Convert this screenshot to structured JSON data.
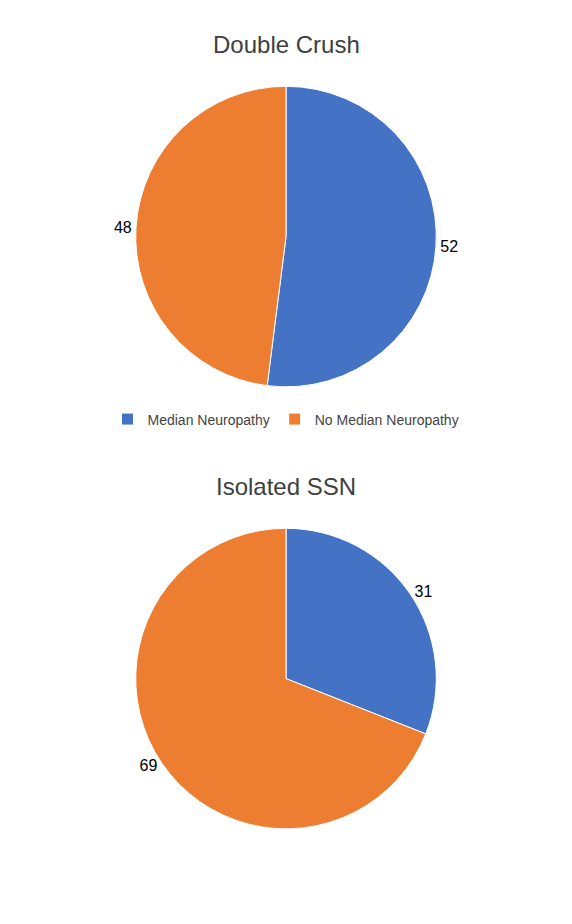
{
  "chart_data": [
    {
      "type": "pie",
      "title": "Double Crush",
      "categories": [
        "Median Neuropathy",
        "No Median Neuropathy"
      ],
      "values": [
        52,
        48
      ],
      "colors": [
        "#4472c4",
        "#ed7d31"
      ],
      "data_labels": true,
      "legend": "bottom"
    },
    {
      "type": "pie",
      "title": "Isolated SSN",
      "categories": [
        "Median Neuropathy",
        "No Median Neuropathy"
      ],
      "values": [
        31,
        69
      ],
      "colors": [
        "#4472c4",
        "#ed7d31"
      ],
      "data_labels": true,
      "legend": "bottom"
    }
  ]
}
